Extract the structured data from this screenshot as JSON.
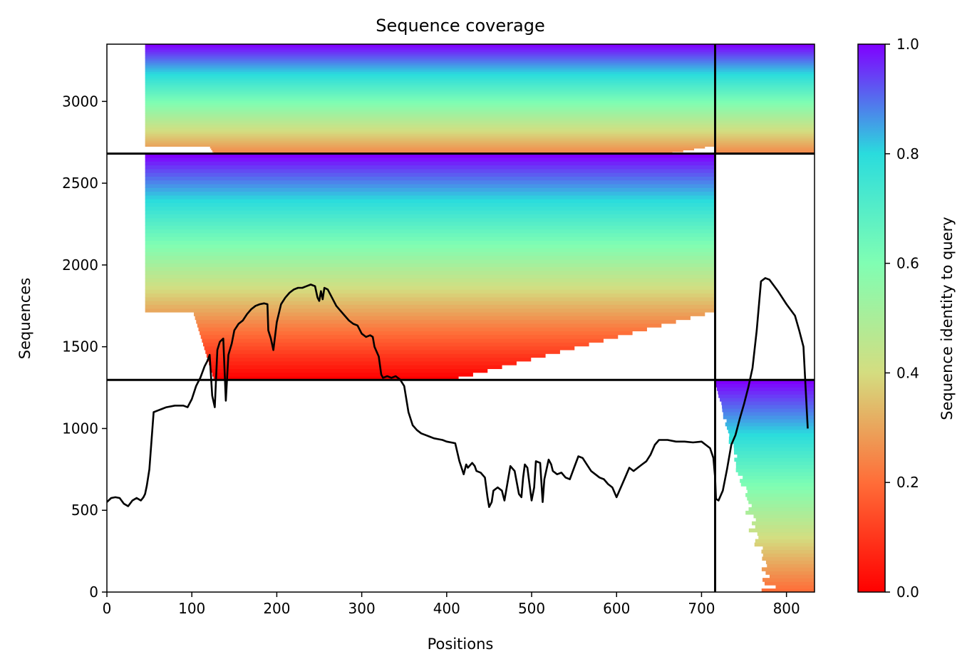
{
  "chart_data": {
    "type": "heatmap",
    "title": "Sequence coverage",
    "xlabel": "Positions",
    "ylabel": "Sequences",
    "xlim": [
      0,
      833
    ],
    "ylim": [
      0,
      3350
    ],
    "x_ticks": [
      0,
      100,
      200,
      300,
      400,
      500,
      600,
      700,
      800
    ],
    "y_ticks": [
      0,
      500,
      1000,
      1500,
      2000,
      2500,
      3000
    ],
    "colorbar": {
      "label": "Sequence identity to query",
      "colormap": "rainbow_r",
      "range": [
        0,
        1
      ],
      "ticks": [
        "0.0",
        "0.2",
        "0.4",
        "0.6",
        "0.8",
        "1.0"
      ],
      "colors": [
        "#ff0000",
        "#ff6d38",
        "#d4dd80",
        "#80feb3",
        "#2adcdd",
        "#8000ff"
      ]
    },
    "chain_boundaries": {
      "x": [
        716
      ],
      "y": [
        1297,
        2681
      ]
    },
    "blocks": [
      {
        "x": [
          0,
          716
        ],
        "y": [
          2681,
          3350
        ],
        "identity_range": [
          0.25,
          1.0
        ],
        "coverage_x": [
          45,
          716
        ]
      },
      {
        "x": [
          716,
          833
        ],
        "y": [
          2681,
          3350
        ],
        "identity_range": [
          0.25,
          1.0
        ],
        "coverage_x": [
          716,
          833
        ]
      },
      {
        "x": [
          0,
          716
        ],
        "y": [
          1297,
          2681
        ],
        "identity_range": [
          0.0,
          1.0
        ],
        "coverage_x": [
          45,
          716
        ]
      },
      {
        "x": [
          716,
          833
        ],
        "y": [
          0,
          1297
        ],
        "identity_range": [
          0.2,
          1.0
        ],
        "coverage_x": [
          716,
          833
        ]
      }
    ],
    "coverage_line": {
      "name": "coverage",
      "color": "#000000",
      "x": [
        0,
        5,
        10,
        15,
        20,
        25,
        30,
        35,
        40,
        43,
        45,
        47,
        50,
        55,
        60,
        65,
        70,
        80,
        90,
        95,
        100,
        105,
        108,
        110,
        115,
        118,
        121,
        124,
        127,
        130,
        133,
        137,
        140,
        143,
        147,
        150,
        155,
        160,
        165,
        170,
        175,
        180,
        185,
        189,
        190,
        193,
        196,
        200,
        205,
        210,
        215,
        220,
        225,
        230,
        235,
        240,
        245,
        248,
        250,
        252,
        254,
        256,
        260,
        265,
        270,
        275,
        280,
        285,
        290,
        295,
        300,
        305,
        310,
        313,
        315,
        320,
        323,
        325,
        330,
        335,
        340,
        345,
        350,
        355,
        360,
        365,
        370,
        375,
        380,
        385,
        390,
        395,
        400,
        410,
        415,
        420,
        423,
        425,
        430,
        433,
        435,
        440,
        445,
        448,
        450,
        453,
        455,
        460,
        465,
        468,
        470,
        475,
        480,
        485,
        488,
        490,
        492,
        495,
        500,
        503,
        505,
        510,
        513,
        515,
        520,
        523,
        525,
        530,
        535,
        540,
        545,
        550,
        555,
        560,
        565,
        570,
        575,
        580,
        585,
        590,
        595,
        600,
        605,
        610,
        615,
        620,
        625,
        630,
        635,
        640,
        645,
        650,
        660,
        670,
        680,
        690,
        700,
        705,
        710,
        714,
        716,
        717,
        720,
        725,
        730,
        735,
        740,
        745,
        750,
        755,
        760,
        765,
        770,
        775,
        780,
        790,
        800,
        810,
        815,
        820,
        825,
        828,
        830,
        832
      ],
      "y": [
        550,
        575,
        580,
        575,
        540,
        525,
        560,
        575,
        560,
        580,
        600,
        650,
        750,
        1100,
        1110,
        1120,
        1130,
        1140,
        1140,
        1130,
        1180,
        1260,
        1290,
        1310,
        1380,
        1410,
        1450,
        1200,
        1130,
        1480,
        1530,
        1550,
        1170,
        1450,
        1520,
        1600,
        1640,
        1660,
        1700,
        1730,
        1750,
        1760,
        1765,
        1760,
        1600,
        1550,
        1480,
        1650,
        1760,
        1800,
        1830,
        1850,
        1860,
        1860,
        1870,
        1880,
        1870,
        1800,
        1780,
        1840,
        1790,
        1860,
        1850,
        1800,
        1750,
        1720,
        1690,
        1660,
        1640,
        1630,
        1580,
        1560,
        1570,
        1560,
        1500,
        1440,
        1330,
        1310,
        1320,
        1310,
        1320,
        1300,
        1260,
        1100,
        1020,
        990,
        970,
        960,
        950,
        940,
        935,
        930,
        920,
        910,
        800,
        720,
        780,
        760,
        790,
        770,
        740,
        730,
        700,
        580,
        520,
        550,
        620,
        640,
        620,
        560,
        620,
        770,
        740,
        600,
        580,
        700,
        780,
        760,
        560,
        640,
        800,
        790,
        550,
        690,
        810,
        780,
        740,
        720,
        730,
        700,
        690,
        760,
        830,
        820,
        780,
        740,
        720,
        700,
        690,
        660,
        640,
        580,
        640,
        700,
        760,
        740,
        760,
        780,
        800,
        840,
        900,
        930,
        930,
        920,
        920,
        915,
        920,
        900,
        880,
        820,
        700,
        570,
        560,
        620,
        750,
        900,
        960,
        1060,
        1150,
        1250,
        1370,
        1600,
        1900,
        1920,
        1910,
        1840,
        1760,
        1690,
        1600,
        1500,
        1000
      ]
    }
  }
}
